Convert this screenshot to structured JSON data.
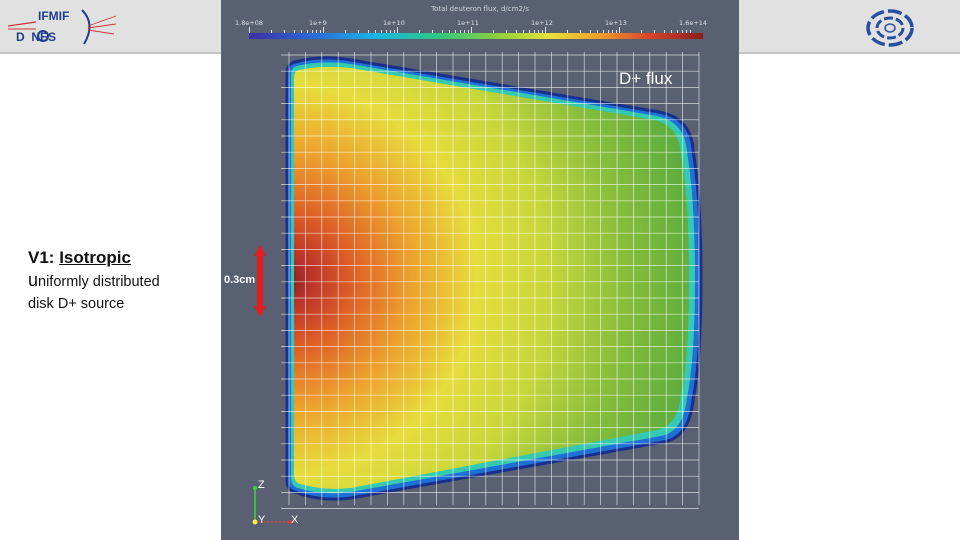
{
  "header": {
    "logo_left_text_top": "IFMIF",
    "logo_left_text_bottom": "D  NES"
  },
  "colorbar": {
    "title": "Total deuteron flux, d/cm2/s",
    "labels": [
      "1.8e+08",
      "1e+9",
      "1e+10",
      "1e+11",
      "1e+12",
      "1e+13",
      "1.6e+14"
    ],
    "scale": "log"
  },
  "plot": {
    "label": "D+ flux",
    "source_width_label": "0.3cm",
    "axis_labels": {
      "z": "Z",
      "y": "Y",
      "x": "X"
    },
    "colors": {
      "background": "#586071",
      "hot": "#8a1d1d",
      "mid": "#e6e23a",
      "edge": "#1a2f8a"
    }
  },
  "description": {
    "title_prefix": "V1: ",
    "title_emphasis": "Isotropic",
    "line1_first": "u",
    "line1_rest": "niformly distributed",
    "line2": "disk D+ source"
  }
}
